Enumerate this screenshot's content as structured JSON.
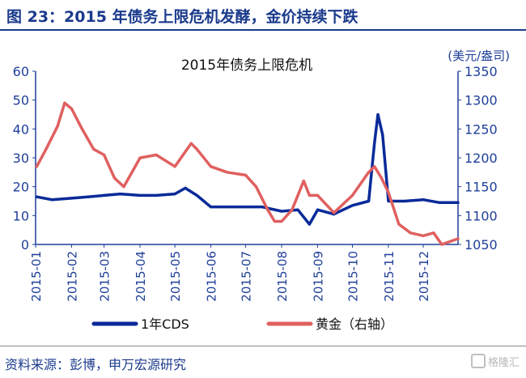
{
  "header": {
    "title": "图 23：2015 年债务上限危机发酵，金价持续下跌"
  },
  "footer": {
    "source": "资料来源：彭博，申万宏源研究"
  },
  "watermark": {
    "text": "格隆汇"
  },
  "colors": {
    "cds": "#0a2a99",
    "gold": "#e06060",
    "header": "#1a3a8c",
    "axis": "#1f3f99"
  },
  "chart_data": {
    "type": "line",
    "title": "2015年债务上限危机",
    "right_axis_unit": "(美元/盎司)",
    "x_ticks": [
      "2015-01",
      "2015-02",
      "2015-03",
      "2015-04",
      "2015-05",
      "2015-06",
      "2015-07",
      "2015-08",
      "2015-09",
      "2015-10",
      "2015-11",
      "2015-12"
    ],
    "left_axis": {
      "ylim": [
        0,
        60
      ],
      "ticks": [
        "0",
        "10",
        "20",
        "30",
        "40",
        "50",
        "60"
      ]
    },
    "right_axis": {
      "ylim": [
        1050,
        1350
      ],
      "ticks": [
        "1050",
        "1100",
        "1150",
        "1200",
        "1250",
        "1300",
        "1350"
      ]
    },
    "legend_position": "bottom",
    "series": [
      {
        "name": "1年CDS",
        "axis": "left",
        "x": [
          "2015-01-02",
          "2015-01-15",
          "2015-02-01",
          "2015-02-15",
          "2015-03-01",
          "2015-03-15",
          "2015-04-01",
          "2015-04-15",
          "2015-05-01",
          "2015-05-10",
          "2015-05-20",
          "2015-06-01",
          "2015-06-15",
          "2015-07-01",
          "2015-07-15",
          "2015-08-01",
          "2015-08-15",
          "2015-08-25",
          "2015-09-01",
          "2015-09-15",
          "2015-10-01",
          "2015-10-15",
          "2015-10-20",
          "2015-10-23",
          "2015-10-27",
          "2015-11-01",
          "2015-11-05",
          "2015-11-15",
          "2015-12-01",
          "2015-12-15",
          "2015-12-31"
        ],
        "values": [
          16.5,
          15.5,
          16,
          16.5,
          17,
          17.5,
          17,
          17,
          17.5,
          19.5,
          17,
          13,
          13,
          13,
          13,
          11.5,
          12,
          7,
          12,
          10.5,
          13.5,
          15,
          35,
          45,
          38,
          15,
          15,
          15,
          15.5,
          14.5,
          14.5
        ]
      },
      {
        "name": "黄金（右轴）",
        "axis": "right",
        "x": [
          "2015-01-02",
          "2015-01-10",
          "2015-01-20",
          "2015-01-26",
          "2015-02-01",
          "2015-02-10",
          "2015-02-20",
          "2015-03-01",
          "2015-03-10",
          "2015-03-18",
          "2015-04-01",
          "2015-04-15",
          "2015-05-01",
          "2015-05-15",
          "2015-05-20",
          "2015-06-01",
          "2015-06-15",
          "2015-07-01",
          "2015-07-10",
          "2015-07-20",
          "2015-07-26",
          "2015-08-01",
          "2015-08-10",
          "2015-08-20",
          "2015-08-25",
          "2015-09-01",
          "2015-09-15",
          "2015-10-01",
          "2015-10-15",
          "2015-10-20",
          "2015-10-26",
          "2015-11-01",
          "2015-11-10",
          "2015-11-20",
          "2015-12-01",
          "2015-12-10",
          "2015-12-17",
          "2015-12-31"
        ],
        "values": [
          1185,
          1215,
          1255,
          1295,
          1285,
          1250,
          1215,
          1205,
          1165,
          1150,
          1200,
          1205,
          1185,
          1225,
          1215,
          1185,
          1175,
          1170,
          1150,
          1110,
          1090,
          1090,
          1110,
          1160,
          1135,
          1135,
          1105,
          1135,
          1175,
          1185,
          1165,
          1140,
          1085,
          1070,
          1065,
          1070,
          1050,
          1060
        ]
      }
    ]
  }
}
